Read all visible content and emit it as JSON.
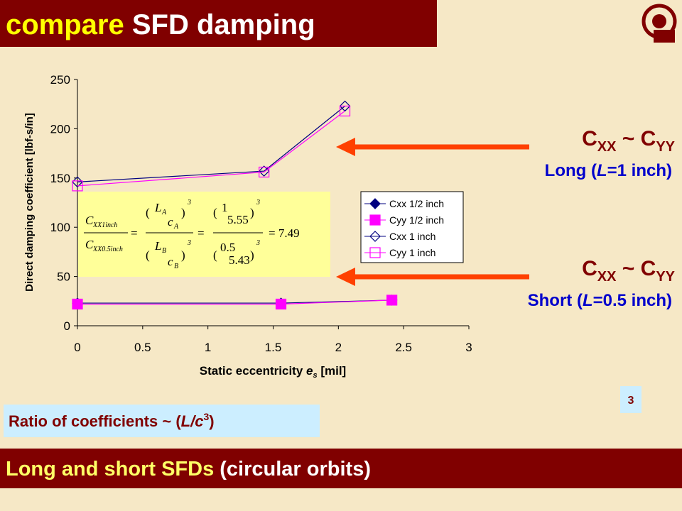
{
  "title": {
    "accent": "compare",
    "rest": " SFD damping"
  },
  "chart_data": {
    "type": "line",
    "ylabel": "Direct damping coefficient [lbf-s/in]",
    "xlabel": {
      "text": "Static eccentricity ",
      "var": "e",
      "sub": "s",
      "unit": " [mil]"
    },
    "xlim": [
      0,
      3
    ],
    "xticks": [
      0,
      0.5,
      1,
      1.5,
      2,
      2.5,
      3
    ],
    "ylim": [
      0,
      250
    ],
    "yticks": [
      0,
      50,
      100,
      150,
      200,
      250
    ],
    "grid": false,
    "legend": "right",
    "series": [
      {
        "name": "Cxx 1/2 inch",
        "color": "#000080",
        "marker": "diamond",
        "filled": true,
        "x": [
          0,
          1.56,
          2.41
        ],
        "values": [
          23,
          23,
          26
        ]
      },
      {
        "name": "Cyy 1/2 inch",
        "color": "#ff00ff",
        "marker": "square",
        "filled": true,
        "x": [
          0,
          1.56,
          2.41
        ],
        "values": [
          22,
          22,
          26
        ]
      },
      {
        "name": "Cxx 1 inch",
        "color": "#000080",
        "marker": "diamond",
        "filled": false,
        "x": [
          0,
          1.43,
          2.05
        ],
        "values": [
          146,
          157,
          223
        ]
      },
      {
        "name": "Cyy 1 inch",
        "color": "#ff00ff",
        "marker": "square",
        "filled": false,
        "x": [
          0,
          1.43,
          2.05
        ],
        "values": [
          142,
          156,
          218
        ]
      }
    ]
  },
  "equation": {
    "lhs_num": "C",
    "lhs_num_sub": "XX1inch",
    "lhs_den": "C",
    "lhs_den_sub": "XX0.5inch",
    "eq": "=",
    "a_num": "L",
    "a_num_sub": "A",
    "a_den": "c",
    "a_den_sub": "A",
    "b_num": "L",
    "b_num_sub": "B",
    "b_den": "c",
    "b_den_sub": "B",
    "pow": "3",
    "n1": "1",
    "d1": "5.55",
    "n2": "0.5",
    "d2": "5.43",
    "result": "= 7.49"
  },
  "labels": [
    {
      "c": "C",
      "s1": "XX",
      "mid": " ~ C",
      "s2": "YY",
      "pre": "Long (",
      "var": "L",
      "post": "=1 inch)"
    },
    {
      "c": "C",
      "s1": "XX",
      "mid": " ~ C",
      "s2": "YY",
      "pre": "Short (",
      "var": "L",
      "post": "=0.5 inch)"
    }
  ],
  "ratio": {
    "text": "Ratio of coefficients ~ (",
    "var": "L/c",
    "sup": "3",
    "close": ")"
  },
  "page": "3",
  "footer": {
    "accent": "Long and short SFDs",
    "rest": " (circular orbits)"
  }
}
